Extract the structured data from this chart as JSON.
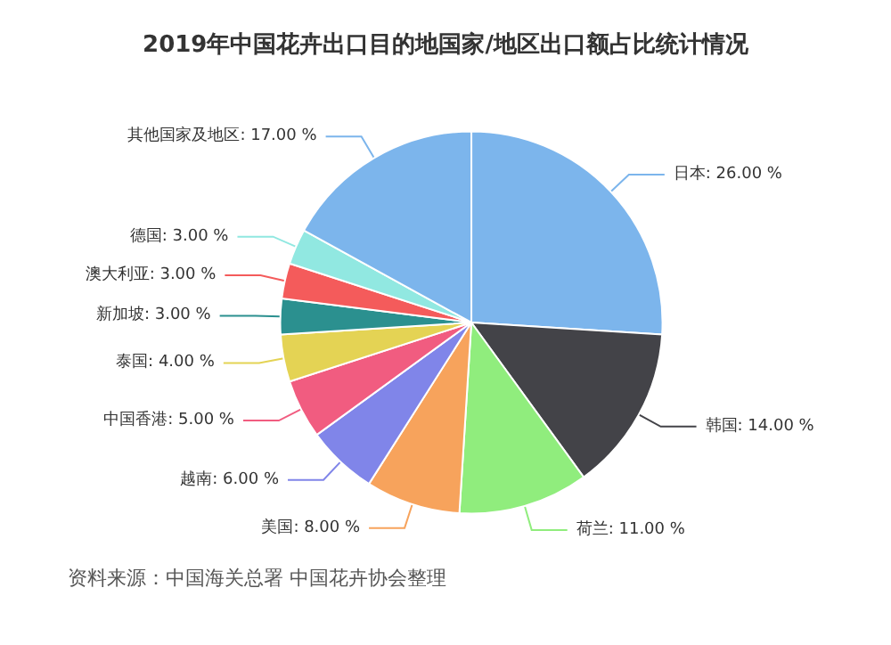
{
  "chart_data": {
    "type": "pie",
    "title": "2019年中国花卉出口目的地国家/地区出口额占比统计情况",
    "categories": [
      "日本",
      "韩国",
      "荷兰",
      "美国",
      "越南",
      "中国香港",
      "泰国",
      "新加坡",
      "澳大利亚",
      "德国",
      "其他国家及地区"
    ],
    "values": [
      26,
      14,
      11,
      8,
      6,
      5,
      4,
      3,
      3,
      3,
      17
    ],
    "value_labels": [
      "26.00 %",
      "14.00 %",
      "11.00 %",
      "8.00 %",
      "6.00 %",
      "5.00 %",
      "4.00 %",
      "3.00 %",
      "3.00 %",
      "3.00 %",
      "17.00 %"
    ],
    "colors": [
      "#7cb5ec",
      "#434348",
      "#90ed7d",
      "#f7a35c",
      "#8085e9",
      "#f15c80",
      "#e4d354",
      "#2b908f",
      "#f45b5b",
      "#91e8e1",
      "#7cb5ec"
    ],
    "annotations": [
      "资料来源：中国海关总署 中国花卉协会整理"
    ]
  }
}
